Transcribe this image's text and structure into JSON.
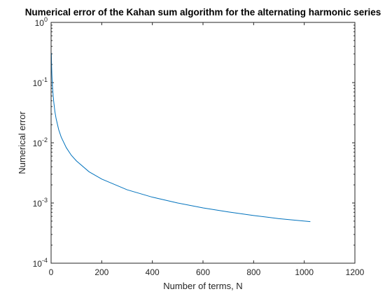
{
  "chart_data": {
    "type": "line",
    "title": "Numerical error of the Kahan sum algorithm for the alternating harmonic series",
    "xlabel": "Number of terms, N",
    "ylabel": "Numerical error",
    "xlim": [
      0,
      1200
    ],
    "ylim": [
      0.0001,
      1
    ],
    "yscale": "log",
    "x_ticks": [
      0,
      200,
      400,
      600,
      800,
      1000,
      1200
    ],
    "y_ticks": [
      {
        "value": 0.0001,
        "base": "10",
        "exp": "-4"
      },
      {
        "value": 0.001,
        "base": "10",
        "exp": "-3"
      },
      {
        "value": 0.01,
        "base": "10",
        "exp": "-2"
      },
      {
        "value": 0.1,
        "base": "10",
        "exp": "-1"
      },
      {
        "value": 1,
        "base": "10",
        "exp": "0"
      }
    ],
    "grid": false,
    "legend": "none",
    "series": [
      {
        "color": "#0072BD",
        "x": [
          1,
          2,
          3,
          4,
          6,
          8,
          10,
          15,
          20,
          30,
          40,
          60,
          80,
          100,
          150,
          200,
          300,
          400,
          500,
          600,
          700,
          800,
          900,
          1024
        ],
        "y": [
          0.31,
          0.19,
          0.14,
          0.11,
          0.08,
          0.062,
          0.05,
          0.033,
          0.025,
          0.0165,
          0.0124,
          0.0083,
          0.0062,
          0.005,
          0.0033,
          0.0025,
          0.00166,
          0.00125,
          0.001,
          0.00083,
          0.00071,
          0.00062,
          0.00055,
          0.00049
        ]
      }
    ]
  }
}
